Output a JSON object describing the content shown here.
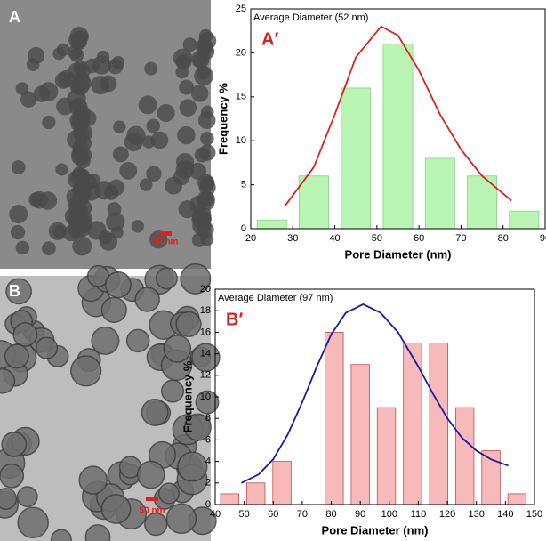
{
  "panels": [
    {
      "label": "A",
      "scale_bar": "50 nm"
    },
    {
      "label": "B",
      "scale_bar": "50 nm"
    }
  ],
  "chart_data": [
    {
      "type": "histogram",
      "panel_label": "A′",
      "annotation": "Average Diameter (52 nm)",
      "x_label": "Pore Diameter (nm)",
      "y_label": "Frequency %",
      "bins": [
        20,
        30,
        40,
        50,
        60,
        70,
        80,
        90
      ],
      "counts": [
        1,
        6,
        16,
        21,
        8,
        6,
        2
      ],
      "color": "#b8f5b2",
      "edge_color": "#8fcf8a",
      "fit": {
        "color": "#e0201c",
        "x": [
          28,
          35,
          40,
          45,
          51,
          55,
          60,
          65,
          70,
          75,
          82
        ],
        "y": [
          2.5,
          7,
          13,
          19.5,
          23,
          22,
          18,
          13,
          9,
          6,
          3.2
        ]
      },
      "xlim": [
        20,
        90
      ],
      "xticks": [
        20,
        30,
        40,
        50,
        60,
        70,
        80,
        90
      ],
      "ylim": [
        0,
        25
      ],
      "yticks": [
        0,
        5,
        10,
        15,
        20,
        25
      ]
    },
    {
      "type": "histogram",
      "panel_label": "B′",
      "annotation": "Average Diameter (97 nm)",
      "x_label": "Pore Diameter (nm)",
      "y_label": "Frequency %",
      "bins": [
        40.5,
        49.5,
        58.5,
        67.5,
        76.5,
        85.5,
        94.5,
        103.5,
        112.5,
        121.5,
        130.5,
        139.5,
        148.5
      ],
      "counts": [
        1,
        2,
        4,
        0,
        16,
        13,
        9,
        15,
        15,
        9,
        5,
        1
      ],
      "color": "#f7b9b9",
      "edge_color": "#c0504d",
      "fit": {
        "color": "#1a1aa6",
        "x": [
          49,
          55,
          60,
          65,
          70,
          75,
          80,
          85,
          91,
          97,
          103,
          110,
          115,
          120,
          125,
          130,
          135,
          141
        ],
        "y": [
          2,
          2.8,
          4.2,
          6.5,
          9.5,
          12.8,
          15.8,
          17.8,
          18.6,
          17.8,
          16,
          12.8,
          10.3,
          8,
          6.2,
          5,
          4.2,
          3.6
        ]
      },
      "xlim": [
        40,
        150
      ],
      "xticks": [
        40,
        50,
        60,
        70,
        80,
        90,
        100,
        110,
        120,
        130,
        140,
        150
      ],
      "ylim": [
        0,
        20
      ],
      "yticks": [
        0,
        2,
        4,
        6,
        8,
        10,
        12,
        14,
        16,
        18,
        20
      ]
    }
  ]
}
